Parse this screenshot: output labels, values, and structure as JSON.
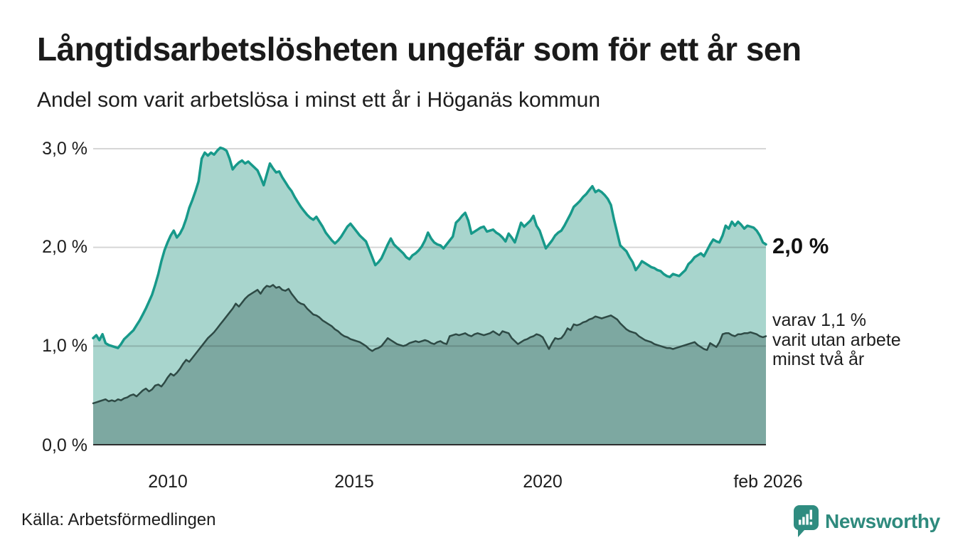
{
  "header": {
    "title": "Långtidsarbetslösheten ungefär som för ett år sen",
    "subtitle": "Andel som varit arbetslösa i minst ett år i Höganäs kommun"
  },
  "chart_data": {
    "type": "area",
    "title": "Långtidsarbetslösheten ungefär som för ett år sen",
    "subtitle": "Andel som varit arbetslösa i minst ett år i Höganäs kommun",
    "unit": "%",
    "grid": "horizontal",
    "x_axis": {
      "min_year": 2008.0,
      "max_year": 2026.083,
      "ticks": [
        {
          "label": "2010",
          "year": 2010
        },
        {
          "label": "2015",
          "year": 2015
        },
        {
          "label": "2020",
          "year": 2020
        },
        {
          "label": "feb 2026",
          "year": 2026.083
        }
      ]
    },
    "y_axis": {
      "max": 3.0,
      "ticks": [
        {
          "label": "3,0 %",
          "value": 3.0
        },
        {
          "label": "2,0 %",
          "value": 2.0
        },
        {
          "label": "1,0 %",
          "value": 1.0
        },
        {
          "label": "0,0 %",
          "value": 0.0
        }
      ]
    },
    "start_year": 2008.0,
    "points_per_year": 12,
    "series": [
      {
        "name": "Andel arbetslösa minst ett år",
        "line_color": "#17998a",
        "fill_color": "#a8d5cd",
        "line_width": 3.5,
        "end_value_percent": 2.0,
        "values": [
          1.08,
          1.11,
          1.06,
          1.12,
          1.03,
          1.01,
          1.0,
          0.99,
          0.98,
          1.02,
          1.07,
          1.1,
          1.13,
          1.16,
          1.21,
          1.26,
          1.32,
          1.38,
          1.45,
          1.52,
          1.62,
          1.73,
          1.86,
          1.97,
          2.05,
          2.12,
          2.17,
          2.1,
          2.14,
          2.2,
          2.29,
          2.4,
          2.48,
          2.57,
          2.67,
          2.9,
          2.96,
          2.93,
          2.96,
          2.94,
          2.98,
          3.01,
          3.0,
          2.98,
          2.9,
          2.79,
          2.83,
          2.86,
          2.88,
          2.85,
          2.87,
          2.84,
          2.81,
          2.78,
          2.71,
          2.63,
          2.74,
          2.85,
          2.8,
          2.76,
          2.77,
          2.71,
          2.66,
          2.61,
          2.57,
          2.51,
          2.46,
          2.41,
          2.37,
          2.33,
          2.3,
          2.28,
          2.31,
          2.26,
          2.21,
          2.15,
          2.11,
          2.07,
          2.04,
          2.07,
          2.11,
          2.16,
          2.21,
          2.24,
          2.2,
          2.16,
          2.12,
          2.09,
          2.06,
          1.98,
          1.9,
          1.82,
          1.85,
          1.89,
          1.96,
          2.03,
          2.09,
          2.03,
          2.0,
          1.97,
          1.94,
          1.9,
          1.88,
          1.92,
          1.94,
          1.97,
          2.01,
          2.07,
          2.15,
          2.09,
          2.05,
          2.03,
          2.02,
          1.99,
          2.03,
          2.07,
          2.11,
          2.25,
          2.28,
          2.32,
          2.35,
          2.27,
          2.14,
          2.16,
          2.18,
          2.2,
          2.21,
          2.16,
          2.17,
          2.18,
          2.15,
          2.13,
          2.1,
          2.06,
          2.14,
          2.1,
          2.05,
          2.15,
          2.25,
          2.21,
          2.24,
          2.27,
          2.32,
          2.22,
          2.17,
          2.08,
          1.99,
          2.03,
          2.07,
          2.12,
          2.15,
          2.17,
          2.22,
          2.28,
          2.34,
          2.41,
          2.44,
          2.47,
          2.51,
          2.54,
          2.58,
          2.62,
          2.56,
          2.58,
          2.56,
          2.53,
          2.49,
          2.43,
          2.28,
          2.15,
          2.02,
          1.99,
          1.96,
          1.9,
          1.85,
          1.77,
          1.81,
          1.86,
          1.84,
          1.82,
          1.8,
          1.79,
          1.77,
          1.76,
          1.73,
          1.71,
          1.7,
          1.73,
          1.72,
          1.71,
          1.74,
          1.77,
          1.83,
          1.86,
          1.9,
          1.92,
          1.94,
          1.91,
          1.97,
          2.03,
          2.08,
          2.06,
          2.05,
          2.12,
          2.22,
          2.19,
          2.26,
          2.22,
          2.26,
          2.23,
          2.19,
          2.22,
          2.21,
          2.2,
          2.17,
          2.12,
          2.05,
          2.03
        ]
      },
      {
        "name": "varav utan arbete minst två år",
        "line_color": "#2e4a45",
        "fill_color": "#7da8a1",
        "line_width": 2.5,
        "end_value_percent": 1.1,
        "values": [
          0.42,
          0.43,
          0.44,
          0.45,
          0.46,
          0.44,
          0.45,
          0.44,
          0.46,
          0.45,
          0.47,
          0.48,
          0.5,
          0.51,
          0.49,
          0.52,
          0.55,
          0.57,
          0.54,
          0.56,
          0.6,
          0.61,
          0.59,
          0.63,
          0.68,
          0.72,
          0.7,
          0.73,
          0.77,
          0.82,
          0.86,
          0.84,
          0.88,
          0.92,
          0.96,
          1.0,
          1.04,
          1.08,
          1.11,
          1.14,
          1.18,
          1.22,
          1.26,
          1.3,
          1.34,
          1.38,
          1.43,
          1.4,
          1.44,
          1.48,
          1.51,
          1.53,
          1.55,
          1.57,
          1.53,
          1.58,
          1.61,
          1.6,
          1.62,
          1.59,
          1.6,
          1.57,
          1.56,
          1.58,
          1.53,
          1.49,
          1.45,
          1.43,
          1.42,
          1.38,
          1.35,
          1.32,
          1.31,
          1.29,
          1.26,
          1.24,
          1.22,
          1.2,
          1.17,
          1.15,
          1.12,
          1.1,
          1.09,
          1.07,
          1.06,
          1.05,
          1.04,
          1.02,
          1.0,
          0.97,
          0.95,
          0.97,
          0.98,
          1.0,
          1.04,
          1.08,
          1.06,
          1.04,
          1.02,
          1.01,
          1.0,
          1.01,
          1.03,
          1.04,
          1.05,
          1.04,
          1.05,
          1.06,
          1.05,
          1.03,
          1.02,
          1.04,
          1.05,
          1.03,
          1.02,
          1.1,
          1.11,
          1.12,
          1.11,
          1.12,
          1.13,
          1.11,
          1.1,
          1.12,
          1.13,
          1.12,
          1.11,
          1.12,
          1.13,
          1.15,
          1.13,
          1.11,
          1.15,
          1.14,
          1.13,
          1.08,
          1.05,
          1.02,
          1.04,
          1.06,
          1.07,
          1.09,
          1.1,
          1.12,
          1.11,
          1.09,
          1.03,
          0.97,
          1.03,
          1.08,
          1.07,
          1.08,
          1.12,
          1.18,
          1.16,
          1.22,
          1.21,
          1.22,
          1.24,
          1.25,
          1.27,
          1.28,
          1.3,
          1.29,
          1.28,
          1.29,
          1.3,
          1.31,
          1.29,
          1.27,
          1.23,
          1.2,
          1.17,
          1.15,
          1.14,
          1.13,
          1.1,
          1.08,
          1.06,
          1.05,
          1.04,
          1.02,
          1.01,
          1.0,
          0.99,
          0.98,
          0.98,
          0.97,
          0.98,
          0.99,
          1.0,
          1.01,
          1.02,
          1.03,
          1.04,
          1.01,
          0.99,
          0.97,
          0.96,
          1.03,
          1.01,
          0.99,
          1.04,
          1.12,
          1.13,
          1.13,
          1.11,
          1.1,
          1.12,
          1.12,
          1.13,
          1.13,
          1.14,
          1.13,
          1.12,
          1.1,
          1.09,
          1.1
        ]
      }
    ],
    "end_labels": {
      "primary": "2,0 %",
      "secondary_lines": [
        "varav 1,1 %",
        "varit utan arbete",
        "minst två år"
      ]
    },
    "colors": {
      "accent_teal": "#17998a",
      "light_area": "#a8d5cd",
      "dark_area": "#7da8a1",
      "dark_line": "#2e4a45",
      "axis_line": "#2f2f2f",
      "gridline": "#d8d8d8"
    }
  },
  "footer": {
    "source": "Källa: Arbetsförmedlingen",
    "brand": "Newsworthy",
    "brand_color": "#2e8a7d"
  }
}
